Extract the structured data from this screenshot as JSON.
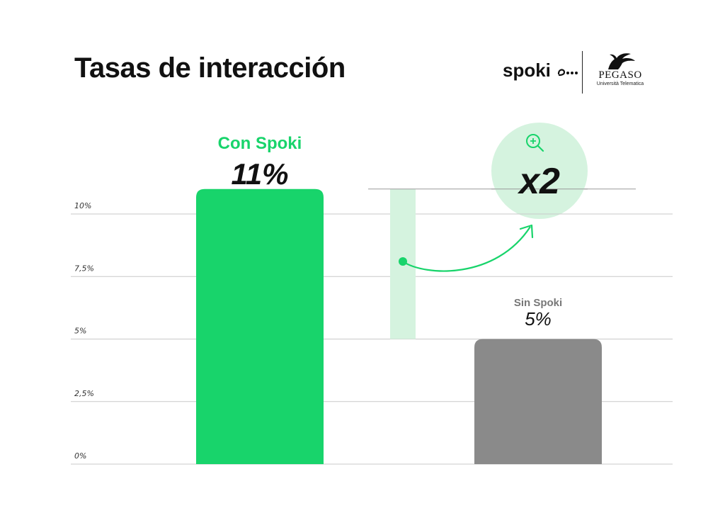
{
  "title": "Tasas de interacción",
  "brands": {
    "spoki": "spoki",
    "pegaso_name": "PEGASO",
    "pegaso_sub": "Università Telematica",
    "pegaso_logo_icon": "pegasus-horse-icon",
    "spoki_logo_icon": "chat-dots-icon"
  },
  "annotation": {
    "multiplier": "x2",
    "icon": "zoom-in-icon"
  },
  "colors": {
    "accent": "#18d46b",
    "accent_light": "#d5f3df",
    "secondary": "#8a8a8a",
    "text": "#111111"
  },
  "chart_data": {
    "type": "bar",
    "title": "Tasas de interacción",
    "categories": [
      "Con Spoki",
      "Sin Spoki"
    ],
    "values": [
      11,
      5
    ],
    "value_labels": [
      "11%",
      "5%"
    ],
    "xlabel": "",
    "ylabel": "",
    "ylim": [
      0,
      10.5
    ],
    "yticks": [
      0,
      2.5,
      5,
      7.5,
      10
    ],
    "ytick_labels": [
      "0%",
      "2,5%",
      "5%",
      "7,5%",
      "10%"
    ],
    "grid": true,
    "bar_colors": [
      "#18d46b",
      "#8a8a8a"
    ]
  }
}
